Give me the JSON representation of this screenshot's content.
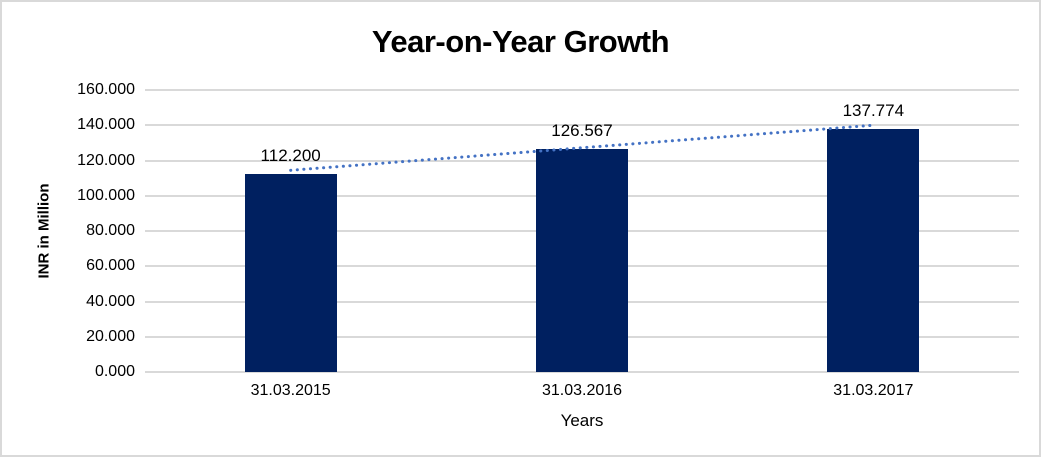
{
  "chart_data": {
    "type": "bar",
    "title": "Year-on-Year Growth",
    "xlabel": "Years",
    "ylabel": "INR in Million",
    "categories": [
      "31.03.2015",
      "31.03.2016",
      "31.03.2017"
    ],
    "values": [
      112.2,
      126.567,
      137.774
    ],
    "bar_labels": [
      "112.200",
      "126.567",
      "137.774"
    ],
    "ylim": [
      0,
      160
    ],
    "yticks": [
      {
        "value": 0,
        "label": "0.000"
      },
      {
        "value": 20,
        "label": "20.000"
      },
      {
        "value": 40,
        "label": "40.000"
      },
      {
        "value": 60,
        "label": "60.000"
      },
      {
        "value": 80,
        "label": "80.000"
      },
      {
        "value": 100,
        "label": "100.000"
      },
      {
        "value": 120,
        "label": "120.000"
      },
      {
        "value": 140,
        "label": "140.000"
      },
      {
        "value": 160,
        "label": "160.000"
      }
    ],
    "grid": true,
    "legend": "none",
    "trendline": {
      "type": "linear",
      "style": "dotted"
    },
    "colors": {
      "bar": "#002060",
      "trendline": "#4472C4",
      "gridline": "#D9D9D9",
      "border": "#D9D9D9",
      "text": "#000000",
      "background": "#FFFFFF"
    }
  }
}
